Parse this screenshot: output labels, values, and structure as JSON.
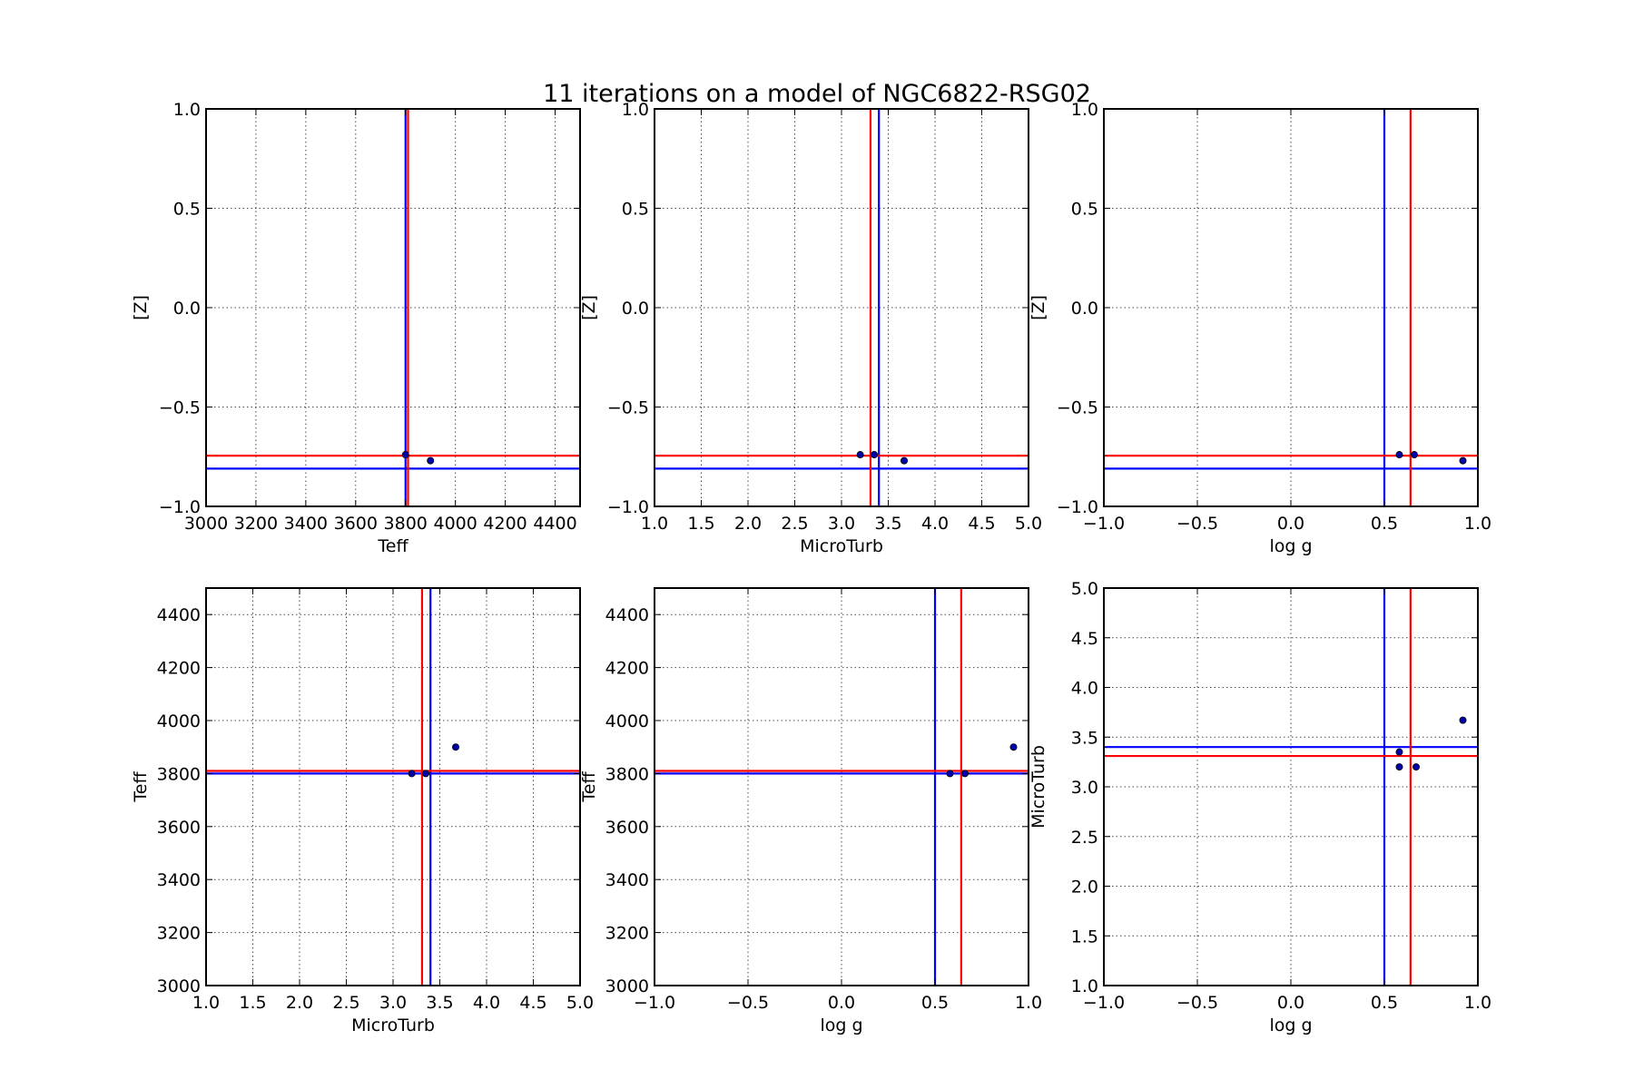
{
  "figure": {
    "title": "11 iterations on a model of NGC6822-RSG02"
  },
  "style": {
    "blue": "#0000ff",
    "red": "#ff0000",
    "point_color": "#0000aa"
  },
  "chart_data": [
    {
      "type": "scatter",
      "xlabel": "Teff",
      "ylabel": "[Z]",
      "xlim": [
        3000,
        4500
      ],
      "ylim": [
        -1.0,
        1.0
      ],
      "xticks": [
        3000,
        3200,
        3400,
        3600,
        3800,
        4000,
        4200,
        4400
      ],
      "xtick_labels": [
        "3000",
        "3200",
        "3400",
        "3600",
        "3800",
        "4000",
        "4200",
        "4400"
      ],
      "yticks": [
        -1.0,
        -0.5,
        0.0,
        0.5,
        1.0
      ],
      "ytick_labels": [
        "−1.0",
        "−0.5",
        "0.0",
        "0.5",
        "1.0"
      ],
      "grid": true,
      "points": [
        [
          3800,
          -0.74
        ],
        [
          3900,
          -0.77
        ]
      ],
      "vlines": [
        {
          "x": 3800,
          "color": "blue"
        },
        {
          "x": 3810,
          "color": "red"
        }
      ],
      "hlines": [
        {
          "y": -0.81,
          "color": "blue"
        },
        {
          "y": -0.745,
          "color": "red"
        }
      ]
    },
    {
      "type": "scatter",
      "xlabel": "MicroTurb",
      "ylabel": "[Z]",
      "xlim": [
        1.0,
        5.0
      ],
      "ylim": [
        -1.0,
        1.0
      ],
      "xticks": [
        1.0,
        1.5,
        2.0,
        2.5,
        3.0,
        3.5,
        4.0,
        4.5,
        5.0
      ],
      "xtick_labels": [
        "1.0",
        "1.5",
        "2.0",
        "2.5",
        "3.0",
        "3.5",
        "4.0",
        "4.5",
        "5.0"
      ],
      "yticks": [
        -1.0,
        -0.5,
        0.0,
        0.5,
        1.0
      ],
      "ytick_labels": [
        "−1.0",
        "−0.5",
        "0.0",
        "0.5",
        "1.0"
      ],
      "grid": true,
      "points": [
        [
          3.2,
          -0.74
        ],
        [
          3.35,
          -0.74
        ],
        [
          3.67,
          -0.77
        ]
      ],
      "vlines": [
        {
          "x": 3.4,
          "color": "blue"
        },
        {
          "x": 3.31,
          "color": "red"
        }
      ],
      "hlines": [
        {
          "y": -0.81,
          "color": "blue"
        },
        {
          "y": -0.745,
          "color": "red"
        }
      ]
    },
    {
      "type": "scatter",
      "xlabel": "log g",
      "ylabel": "[Z]",
      "xlim": [
        -1.0,
        1.0
      ],
      "ylim": [
        -1.0,
        1.0
      ],
      "xticks": [
        -1.0,
        -0.5,
        0.0,
        0.5,
        1.0
      ],
      "xtick_labels": [
        "−1.0",
        "−0.5",
        "0.0",
        "0.5",
        "1.0"
      ],
      "yticks": [
        -1.0,
        -0.5,
        0.0,
        0.5,
        1.0
      ],
      "ytick_labels": [
        "−1.0",
        "−0.5",
        "0.0",
        "0.5",
        "1.0"
      ],
      "grid": true,
      "points": [
        [
          0.58,
          -0.74
        ],
        [
          0.66,
          -0.74
        ],
        [
          0.92,
          -0.77
        ]
      ],
      "vlines": [
        {
          "x": 0.5,
          "color": "blue"
        },
        {
          "x": 0.64,
          "color": "red"
        }
      ],
      "hlines": [
        {
          "y": -0.81,
          "color": "blue"
        },
        {
          "y": -0.745,
          "color": "red"
        }
      ]
    },
    {
      "type": "scatter",
      "xlabel": "MicroTurb",
      "ylabel": "Teff",
      "xlim": [
        1.0,
        5.0
      ],
      "ylim": [
        3000,
        4500
      ],
      "xticks": [
        1.0,
        1.5,
        2.0,
        2.5,
        3.0,
        3.5,
        4.0,
        4.5,
        5.0
      ],
      "xtick_labels": [
        "1.0",
        "1.5",
        "2.0",
        "2.5",
        "3.0",
        "3.5",
        "4.0",
        "4.5",
        "5.0"
      ],
      "yticks": [
        3000,
        3200,
        3400,
        3600,
        3800,
        4000,
        4200,
        4400
      ],
      "ytick_labels": [
        "3000",
        "3200",
        "3400",
        "3600",
        "3800",
        "4000",
        "4200",
        "4400"
      ],
      "grid": true,
      "points": [
        [
          3.2,
          3800
        ],
        [
          3.35,
          3800
        ],
        [
          3.67,
          3900
        ]
      ],
      "vlines": [
        {
          "x": 3.4,
          "color": "blue"
        },
        {
          "x": 3.31,
          "color": "red"
        }
      ],
      "hlines": [
        {
          "y": 3800,
          "color": "blue"
        },
        {
          "y": 3810,
          "color": "red"
        }
      ]
    },
    {
      "type": "scatter",
      "xlabel": "log g",
      "ylabel": "Teff",
      "xlim": [
        -1.0,
        1.0
      ],
      "ylim": [
        3000,
        4500
      ],
      "xticks": [
        -1.0,
        -0.5,
        0.0,
        0.5,
        1.0
      ],
      "xtick_labels": [
        "−1.0",
        "−0.5",
        "0.0",
        "0.5",
        "1.0"
      ],
      "yticks": [
        3000,
        3200,
        3400,
        3600,
        3800,
        4000,
        4200,
        4400
      ],
      "ytick_labels": [
        "3000",
        "3200",
        "3400",
        "3600",
        "3800",
        "4000",
        "4200",
        "4400"
      ],
      "grid": true,
      "points": [
        [
          0.58,
          3800
        ],
        [
          0.66,
          3800
        ],
        [
          0.92,
          3900
        ]
      ],
      "vlines": [
        {
          "x": 0.5,
          "color": "blue"
        },
        {
          "x": 0.64,
          "color": "red"
        }
      ],
      "hlines": [
        {
          "y": 3800,
          "color": "blue"
        },
        {
          "y": 3810,
          "color": "red"
        }
      ]
    },
    {
      "type": "scatter",
      "xlabel": "log g",
      "ylabel": "MicroTurb",
      "xlim": [
        -1.0,
        1.0
      ],
      "ylim": [
        1.0,
        5.0
      ],
      "xticks": [
        -1.0,
        -0.5,
        0.0,
        0.5,
        1.0
      ],
      "xtick_labels": [
        "−1.0",
        "−0.5",
        "0.0",
        "0.5",
        "1.0"
      ],
      "yticks": [
        1.0,
        1.5,
        2.0,
        2.5,
        3.0,
        3.5,
        4.0,
        4.5,
        5.0
      ],
      "ytick_labels": [
        "1.0",
        "1.5",
        "2.0",
        "2.5",
        "3.0",
        "3.5",
        "4.0",
        "4.5",
        "5.0"
      ],
      "grid": true,
      "points": [
        [
          0.58,
          3.35
        ],
        [
          0.58,
          3.2
        ],
        [
          0.67,
          3.2
        ],
        [
          0.92,
          3.67
        ]
      ],
      "vlines": [
        {
          "x": 0.5,
          "color": "blue"
        },
        {
          "x": 0.64,
          "color": "red"
        }
      ],
      "hlines": [
        {
          "y": 3.4,
          "color": "blue"
        },
        {
          "y": 3.31,
          "color": "red"
        }
      ]
    }
  ]
}
